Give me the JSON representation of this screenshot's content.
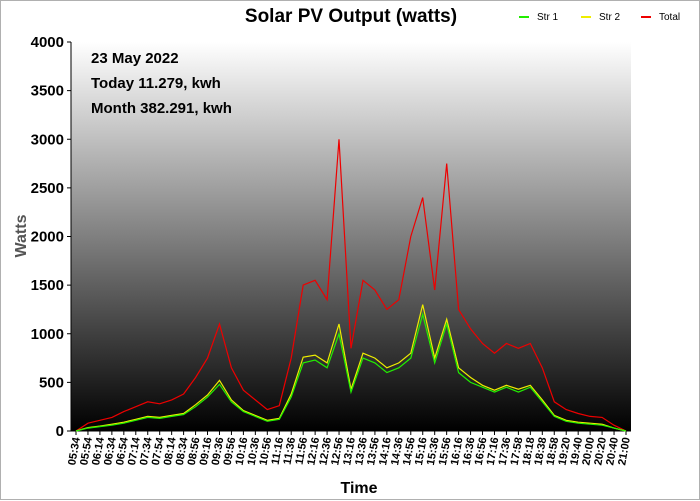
{
  "chart_data": {
    "type": "line",
    "title": "Solar PV Output (watts)",
    "xlabel": "Time",
    "ylabel": "Watts",
    "ylim": [
      0,
      4000
    ],
    "yticks": [
      "0",
      "500",
      "1000",
      "1500",
      "2000",
      "2500",
      "3000",
      "3500",
      "4000"
    ],
    "background": "vertical gradient white to black",
    "legend_position": "top-right",
    "annotations": [
      "23 May 2022",
      "Today 11.279, kwh",
      "Month 382.291, kwh"
    ],
    "x": [
      "05:34",
      "05:54",
      "06:14",
      "06:34",
      "06:54",
      "07:14",
      "07:34",
      "07:54",
      "08:14",
      "08:34",
      "08:56",
      "09:16",
      "09:36",
      "09:56",
      "10:16",
      "10:36",
      "10:56",
      "11:16",
      "11:36",
      "11:56",
      "12:16",
      "12:36",
      "12:56",
      "13:16",
      "13:36",
      "13:56",
      "14:16",
      "14:36",
      "14:56",
      "15:16",
      "15:36",
      "15:56",
      "16:16",
      "16:36",
      "16:56",
      "17:16",
      "17:36",
      "17:58",
      "18:18",
      "18:38",
      "18:58",
      "19:20",
      "19:40",
      "20:00",
      "20:20",
      "20:40",
      "21:00"
    ],
    "series": [
      {
        "name": "Str 1",
        "color": "#22ee00",
        "values": [
          0,
          30,
          45,
          60,
          80,
          110,
          140,
          130,
          150,
          170,
          250,
          350,
          480,
          300,
          200,
          150,
          100,
          120,
          350,
          700,
          730,
          650,
          1000,
          400,
          750,
          700,
          600,
          650,
          750,
          1200,
          700,
          1100,
          600,
          500,
          450,
          400,
          450,
          400,
          450,
          300,
          150,
          100,
          80,
          70,
          60,
          30,
          0
        ]
      },
      {
        "name": "Str 2",
        "color": "#eeee00",
        "values": [
          0,
          35,
          50,
          70,
          90,
          120,
          150,
          140,
          160,
          180,
          270,
          370,
          520,
          320,
          210,
          160,
          110,
          130,
          380,
          760,
          780,
          700,
          1100,
          430,
          800,
          750,
          650,
          700,
          800,
          1300,
          750,
          1150,
          650,
          550,
          470,
          420,
          470,
          430,
          470,
          320,
          160,
          110,
          90,
          80,
          70,
          30,
          0
        ]
      },
      {
        "name": "Total",
        "color": "#ee0000",
        "values": [
          0,
          80,
          110,
          140,
          200,
          250,
          300,
          280,
          320,
          380,
          550,
          750,
          1100,
          650,
          420,
          320,
          220,
          260,
          750,
          1500,
          1550,
          1350,
          3000,
          850,
          1550,
          1450,
          1250,
          1350,
          2000,
          2400,
          1450,
          2750,
          1250,
          1050,
          900,
          800,
          900,
          850,
          900,
          650,
          300,
          220,
          180,
          150,
          140,
          60,
          0
        ]
      }
    ]
  }
}
